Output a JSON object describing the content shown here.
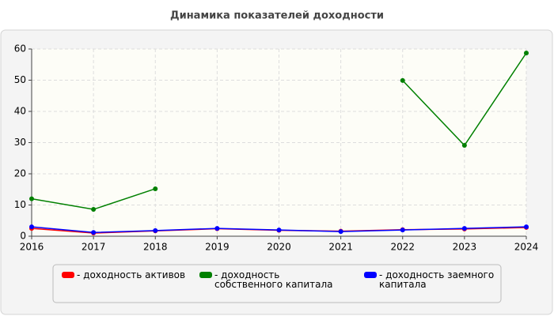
{
  "chart_data": {
    "type": "line",
    "title": "Динамика показателей доходности",
    "x": [
      2016,
      2017,
      2018,
      2019,
      2020,
      2021,
      2022,
      2023,
      2024
    ],
    "xlim": [
      2016,
      2024
    ],
    "xticks": [
      2016,
      2017,
      2018,
      2019,
      2020,
      2021,
      2022,
      2023,
      2024
    ],
    "ylim": [
      0,
      60
    ],
    "yticks": [
      0,
      10,
      20,
      30,
      40,
      50,
      60
    ],
    "grid": true,
    "legend": "bottom",
    "series": [
      {
        "name": "- доходность активов",
        "color": "#ff0000",
        "values": [
          2.5,
          1.0,
          1.7,
          2.4,
          1.9,
          1.6,
          2.1,
          2.3,
          2.8
        ]
      },
      {
        "name": "- доходность собственного капитала",
        "color": "#008000",
        "values": [
          12,
          8.6,
          15.2,
          null,
          null,
          null,
          49.9,
          29.1,
          58.7
        ]
      },
      {
        "name": "- доходность заемного капитала",
        "color": "#0000ff",
        "values": [
          3.0,
          1.2,
          1.8,
          2.5,
          2.0,
          1.5,
          2.0,
          2.5,
          3.0
        ]
      }
    ]
  }
}
